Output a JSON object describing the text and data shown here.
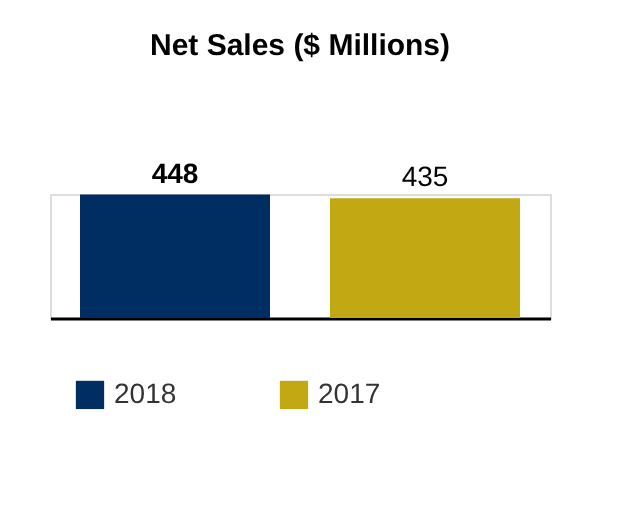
{
  "chart_data": {
    "type": "bar",
    "title": "Net Sales ($ Millions)",
    "categories": [
      null
    ],
    "series": [
      {
        "name": "2018",
        "color": "#002d62",
        "values": [
          448
        ]
      },
      {
        "name": "2017",
        "color": "#c2a812",
        "values": [
          435
        ]
      }
    ],
    "data_labels": true,
    "legend": "bottom",
    "tick_labels": false
  }
}
